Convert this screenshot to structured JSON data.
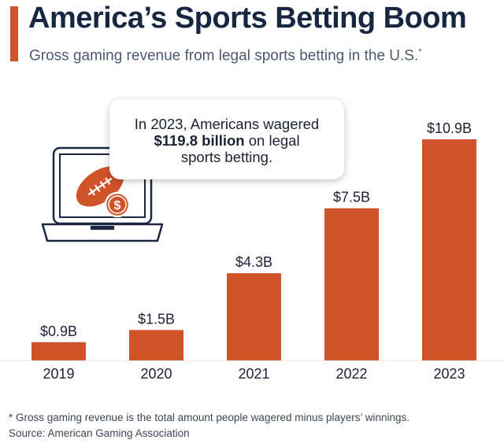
{
  "header": {
    "title": "America’s Sports Betting Boom",
    "subtitle": "Gross gaming revenue from legal sports betting in the U.S.",
    "subtitle_marker": "*"
  },
  "callout": {
    "line1": "In 2023, Americans wagered",
    "line2_bold": "$119.8 billion",
    "line2_rest": " on legal",
    "line3": "sports betting."
  },
  "illustration": {
    "icon": "laptop-football-dollar-icon"
  },
  "chart_data": {
    "type": "bar",
    "categories": [
      "2019",
      "2020",
      "2021",
      "2022",
      "2023"
    ],
    "values": [
      0.9,
      1.5,
      4.3,
      7.5,
      10.9
    ],
    "labels": [
      "$0.9B",
      "$1.5B",
      "$4.3B",
      "$7.5B",
      "$10.9B"
    ],
    "title": "America’s Sports Betting Boom",
    "subtitle": "Gross gaming revenue from legal sports betting in the U.S.",
    "ylim": [
      0,
      10.9
    ],
    "grid": false,
    "bar_color": "#D0532A"
  },
  "footer": {
    "footnote": "* Gross gaming revenue is the total amount people wagered minus players’ winnings.",
    "source": "Source: American Gaming Association"
  },
  "colors": {
    "accent": "#D0532A",
    "title": "#172741",
    "text": "#3e4656"
  }
}
